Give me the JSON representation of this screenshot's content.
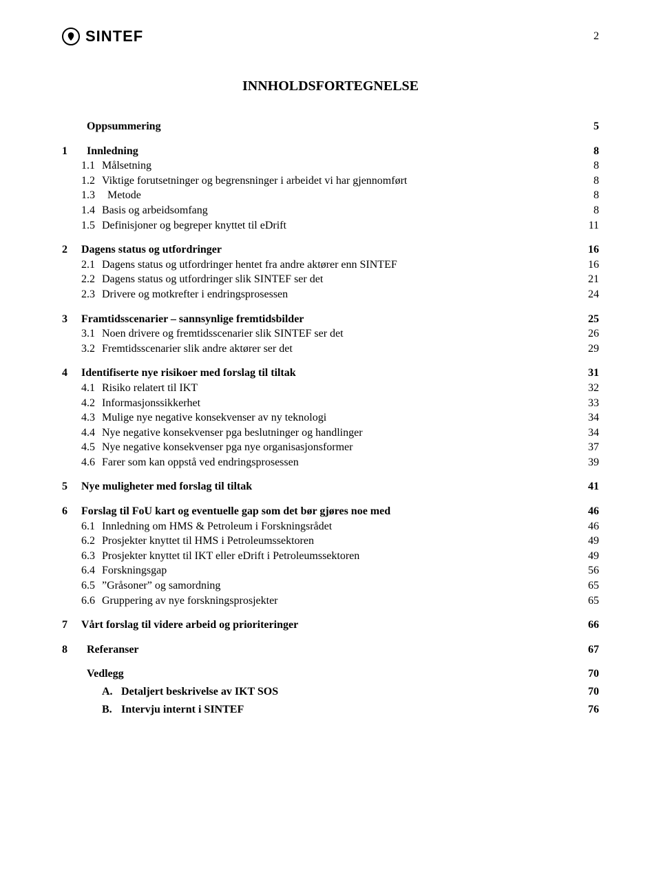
{
  "page_number": "2",
  "logo_text": "SINTEF",
  "title": "INNHOLDSFORTEGNELSE",
  "toc": [
    {
      "level": "top",
      "num": "",
      "label": "Oppsummering",
      "page": "5",
      "gap": true
    },
    {
      "level": "top",
      "num": "1",
      "label": "Innledning",
      "page": "8",
      "gap": true
    },
    {
      "level": "sub",
      "num": "1.1",
      "label": "Målsetning",
      "page": "8"
    },
    {
      "level": "sub",
      "num": "1.2",
      "label": "Viktige forutsetninger og begrensninger i arbeidet vi har gjennomført",
      "page": "8"
    },
    {
      "level": "sub",
      "num": "1.3",
      "label": "Metode",
      "page": "8",
      "gap": true
    },
    {
      "level": "sub",
      "num": "1.4",
      "label": "Basis og arbeidsomfang",
      "page": "8"
    },
    {
      "level": "sub",
      "num": "1.5",
      "label": "Definisjoner og begreper knyttet til eDrift",
      "page": "11"
    },
    {
      "level": "top",
      "num": "2",
      "label": "Dagens status og utfordringer",
      "page": "16"
    },
    {
      "level": "sub",
      "num": "2.1",
      "label": "Dagens status og utfordringer hentet fra andre aktører enn SINTEF",
      "page": "16"
    },
    {
      "level": "sub",
      "num": "2.2",
      "label": "Dagens status og utfordringer slik SINTEF ser det",
      "page": "21"
    },
    {
      "level": "sub",
      "num": "2.3",
      "label": "Drivere og motkrefter i endringsprosessen",
      "page": "24"
    },
    {
      "level": "top",
      "num": "3",
      "label": "Framtidsscenarier – sannsynlige fremtidsbilder",
      "page": "25"
    },
    {
      "level": "sub",
      "num": "3.1",
      "label": "Noen drivere og fremtidsscenarier slik SINTEF ser det",
      "page": "26"
    },
    {
      "level": "sub",
      "num": "3.2",
      "label": "Fremtidsscenarier slik andre aktører ser det",
      "page": "29"
    },
    {
      "level": "top",
      "num": "4",
      "label": "Identifiserte nye risikoer med forslag til tiltak",
      "page": "31"
    },
    {
      "level": "sub",
      "num": "4.1",
      "label": "Risiko relatert til IKT",
      "page": "32"
    },
    {
      "level": "sub",
      "num": "4.2",
      "label": "Informasjonssikkerhet",
      "page": "33"
    },
    {
      "level": "sub",
      "num": "4.3",
      "label": "Mulige nye negative konsekvenser av ny teknologi",
      "page": "34"
    },
    {
      "level": "sub",
      "num": "4.4",
      "label": "Nye negative konsekvenser pga beslutninger og handlinger",
      "page": "34"
    },
    {
      "level": "sub",
      "num": "4.5",
      "label": "Nye negative konsekvenser pga nye organisasjonsformer",
      "page": "37"
    },
    {
      "level": "sub",
      "num": "4.6",
      "label": "Farer som kan oppstå ved endringsprosessen",
      "page": "39"
    },
    {
      "level": "top",
      "num": "5",
      "label": "Nye muligheter med forslag til tiltak",
      "page": "41"
    },
    {
      "level": "top",
      "num": "6",
      "label": "Forslag til FoU kart og eventuelle gap som det bør gjøres noe med",
      "page": "46"
    },
    {
      "level": "sub",
      "num": "6.1",
      "label": "Innledning om HMS & Petroleum i Forskningsrådet",
      "page": "46"
    },
    {
      "level": "sub",
      "num": "6.2",
      "label": "Prosjekter knyttet til HMS i Petroleumssektoren",
      "page": "49"
    },
    {
      "level": "sub",
      "num": "6.3",
      "label": "Prosjekter knyttet til IKT eller eDrift i Petroleumssektoren",
      "page": "49"
    },
    {
      "level": "sub",
      "num": "6.4",
      "label": "Forskningsgap",
      "page": "56"
    },
    {
      "level": "sub",
      "num": "6.5",
      "label": "”Gråsoner” og samordning",
      "page": "65"
    },
    {
      "level": "sub",
      "num": "6.6",
      "label": "Gruppering av nye forskningsprosjekter",
      "page": "65"
    },
    {
      "level": "top",
      "num": "7",
      "label": "Vårt forslag til videre arbeid og prioriteringer",
      "page": "66"
    },
    {
      "level": "top",
      "num": "8",
      "label": "Referanser",
      "page": "67",
      "gap": true
    },
    {
      "level": "top",
      "num": "",
      "label": "Vedlegg",
      "page": "70",
      "gap": true
    },
    {
      "level": "special",
      "num": "A.",
      "label": "Detaljert beskrivelse av IKT SOS",
      "page": "70"
    },
    {
      "level": "special",
      "num": "B.",
      "label": "Intervju internt i SINTEF",
      "page": "76"
    }
  ]
}
